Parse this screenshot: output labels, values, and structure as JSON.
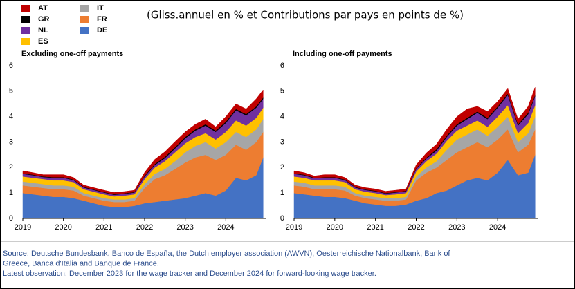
{
  "title": "(Gliss.annuel en % et Contributions par pays  en points de %)",
  "source": [
    "Source: Deutsche Bundesbank, Banco de España, the Dutch employer association (AWVN), Oesterreichische Nationalbank, Bank of",
    "Greece, Banca d'Italia and Banque de France.",
    "Latest observation: December 2023 for the wage tracker and December 2024 for forward-looking wage tracker."
  ],
  "chart_data": [
    {
      "type": "area",
      "stacked": true,
      "title": "Excluding one-off payments",
      "x": [
        2019,
        2019.25,
        2019.5,
        2019.75,
        2020,
        2020.25,
        2020.5,
        2020.75,
        2021,
        2021.25,
        2021.5,
        2021.75,
        2022,
        2022.25,
        2022.5,
        2022.75,
        2023,
        2023.25,
        2023.5,
        2023.75,
        2024,
        2024.25,
        2024.5,
        2024.75,
        2024.92
      ],
      "xlim": [
        2019,
        2025
      ],
      "xticks": [
        2019,
        2020,
        2021,
        2022,
        2023,
        2024
      ],
      "ylim": [
        0,
        6
      ],
      "yticks": [
        0,
        1,
        2,
        3,
        4,
        5,
        6
      ],
      "series": [
        {
          "name": "DE",
          "color": "#4472c4",
          "values": [
            1.0,
            0.95,
            0.9,
            0.85,
            0.85,
            0.8,
            0.7,
            0.6,
            0.5,
            0.45,
            0.45,
            0.5,
            0.6,
            0.65,
            0.7,
            0.75,
            0.8,
            0.9,
            1.0,
            0.9,
            1.1,
            1.6,
            1.5,
            1.7,
            2.4
          ]
        },
        {
          "name": "FR",
          "color": "#ed7d31",
          "values": [
            0.3,
            0.3,
            0.3,
            0.3,
            0.3,
            0.3,
            0.2,
            0.2,
            0.2,
            0.2,
            0.2,
            0.2,
            0.6,
            0.9,
            1.0,
            1.2,
            1.4,
            1.5,
            1.5,
            1.4,
            1.4,
            1.3,
            1.2,
            1.3,
            1.0
          ]
        },
        {
          "name": "IT",
          "color": "#a6a6a6",
          "values": [
            0.15,
            0.15,
            0.15,
            0.15,
            0.15,
            0.15,
            0.1,
            0.1,
            0.1,
            0.1,
            0.1,
            0.1,
            0.15,
            0.2,
            0.25,
            0.3,
            0.4,
            0.45,
            0.5,
            0.45,
            0.5,
            0.5,
            0.5,
            0.5,
            0.5
          ]
        },
        {
          "name": "ES",
          "color": "#ffc000",
          "values": [
            0.2,
            0.2,
            0.2,
            0.2,
            0.2,
            0.18,
            0.15,
            0.15,
            0.15,
            0.12,
            0.15,
            0.15,
            0.2,
            0.25,
            0.3,
            0.35,
            0.35,
            0.35,
            0.35,
            0.35,
            0.4,
            0.45,
            0.45,
            0.45,
            0.45
          ]
        },
        {
          "name": "NL",
          "color": "#7030a0",
          "values": [
            0.1,
            0.1,
            0.08,
            0.1,
            0.1,
            0.08,
            0.07,
            0.07,
            0.07,
            0.06,
            0.07,
            0.07,
            0.1,
            0.1,
            0.12,
            0.15,
            0.2,
            0.25,
            0.3,
            0.3,
            0.35,
            0.4,
            0.4,
            0.4,
            0.35
          ]
        },
        {
          "name": "GR",
          "color": "#000000",
          "values": [
            0.02,
            0.02,
            0.02,
            0.02,
            0.02,
            0.02,
            0.02,
            0.02,
            0.02,
            0.02,
            0.02,
            0.02,
            0.03,
            0.04,
            0.05,
            0.05,
            0.05,
            0.05,
            0.05,
            0.05,
            0.05,
            0.05,
            0.05,
            0.05,
            0.05
          ]
        },
        {
          "name": "AT",
          "color": "#c00000",
          "values": [
            0.1,
            0.08,
            0.07,
            0.1,
            0.1,
            0.08,
            0.07,
            0.07,
            0.07,
            0.07,
            0.07,
            0.07,
            0.13,
            0.18,
            0.2,
            0.22,
            0.2,
            0.2,
            0.2,
            0.15,
            0.2,
            0.2,
            0.2,
            0.3,
            0.3
          ]
        }
      ]
    },
    {
      "type": "area",
      "stacked": true,
      "title": "Including one-off payments",
      "x": [
        2019,
        2019.25,
        2019.5,
        2019.75,
        2020,
        2020.25,
        2020.5,
        2020.75,
        2021,
        2021.25,
        2021.5,
        2021.75,
        2022,
        2022.25,
        2022.5,
        2022.75,
        2023,
        2023.25,
        2023.5,
        2023.75,
        2024,
        2024.25,
        2024.5,
        2024.75,
        2024.92
      ],
      "xlim": [
        2019,
        2025
      ],
      "xticks": [
        2019,
        2020,
        2021,
        2022,
        2023,
        2024
      ],
      "ylim": [
        0,
        6
      ],
      "yticks": [
        0,
        1,
        2,
        3,
        4,
        5,
        6
      ],
      "series": [
        {
          "name": "DE",
          "color": "#4472c4",
          "values": [
            1.0,
            0.95,
            0.9,
            0.85,
            0.85,
            0.8,
            0.7,
            0.6,
            0.55,
            0.5,
            0.5,
            0.55,
            0.7,
            0.8,
            1.0,
            1.1,
            1.3,
            1.5,
            1.6,
            1.5,
            1.8,
            2.3,
            1.7,
            1.8,
            2.5
          ]
        },
        {
          "name": "FR",
          "color": "#ed7d31",
          "values": [
            0.3,
            0.3,
            0.25,
            0.3,
            0.3,
            0.3,
            0.2,
            0.2,
            0.2,
            0.2,
            0.2,
            0.2,
            0.8,
            1.0,
            1.0,
            1.2,
            1.3,
            1.3,
            1.4,
            1.3,
            1.3,
            1.2,
            0.9,
            1.1,
            1.0
          ]
        },
        {
          "name": "IT",
          "color": "#a6a6a6",
          "values": [
            0.15,
            0.15,
            0.15,
            0.15,
            0.15,
            0.15,
            0.1,
            0.1,
            0.1,
            0.1,
            0.1,
            0.1,
            0.15,
            0.2,
            0.25,
            0.4,
            0.5,
            0.5,
            0.5,
            0.45,
            0.5,
            0.5,
            0.4,
            0.45,
            0.5
          ]
        },
        {
          "name": "ES",
          "color": "#ffc000",
          "values": [
            0.2,
            0.2,
            0.2,
            0.2,
            0.2,
            0.18,
            0.15,
            0.15,
            0.15,
            0.12,
            0.15,
            0.15,
            0.2,
            0.25,
            0.3,
            0.35,
            0.35,
            0.35,
            0.35,
            0.35,
            0.4,
            0.45,
            0.35,
            0.4,
            0.45
          ]
        },
        {
          "name": "NL",
          "color": "#7030a0",
          "values": [
            0.1,
            0.1,
            0.08,
            0.1,
            0.1,
            0.08,
            0.07,
            0.07,
            0.07,
            0.06,
            0.07,
            0.07,
            0.1,
            0.1,
            0.12,
            0.15,
            0.2,
            0.25,
            0.3,
            0.3,
            0.35,
            0.4,
            0.3,
            0.35,
            0.35
          ]
        },
        {
          "name": "GR",
          "color": "#000000",
          "values": [
            0.02,
            0.02,
            0.02,
            0.02,
            0.02,
            0.02,
            0.02,
            0.02,
            0.02,
            0.02,
            0.02,
            0.02,
            0.03,
            0.04,
            0.05,
            0.05,
            0.05,
            0.05,
            0.05,
            0.05,
            0.05,
            0.05,
            0.05,
            0.05,
            0.05
          ]
        },
        {
          "name": "AT",
          "color": "#c00000",
          "values": [
            0.1,
            0.08,
            0.07,
            0.1,
            0.1,
            0.08,
            0.07,
            0.07,
            0.07,
            0.07,
            0.07,
            0.07,
            0.13,
            0.18,
            0.2,
            0.25,
            0.3,
            0.35,
            0.2,
            0.25,
            0.2,
            0.2,
            0.2,
            0.25,
            0.3
          ]
        }
      ]
    }
  ]
}
